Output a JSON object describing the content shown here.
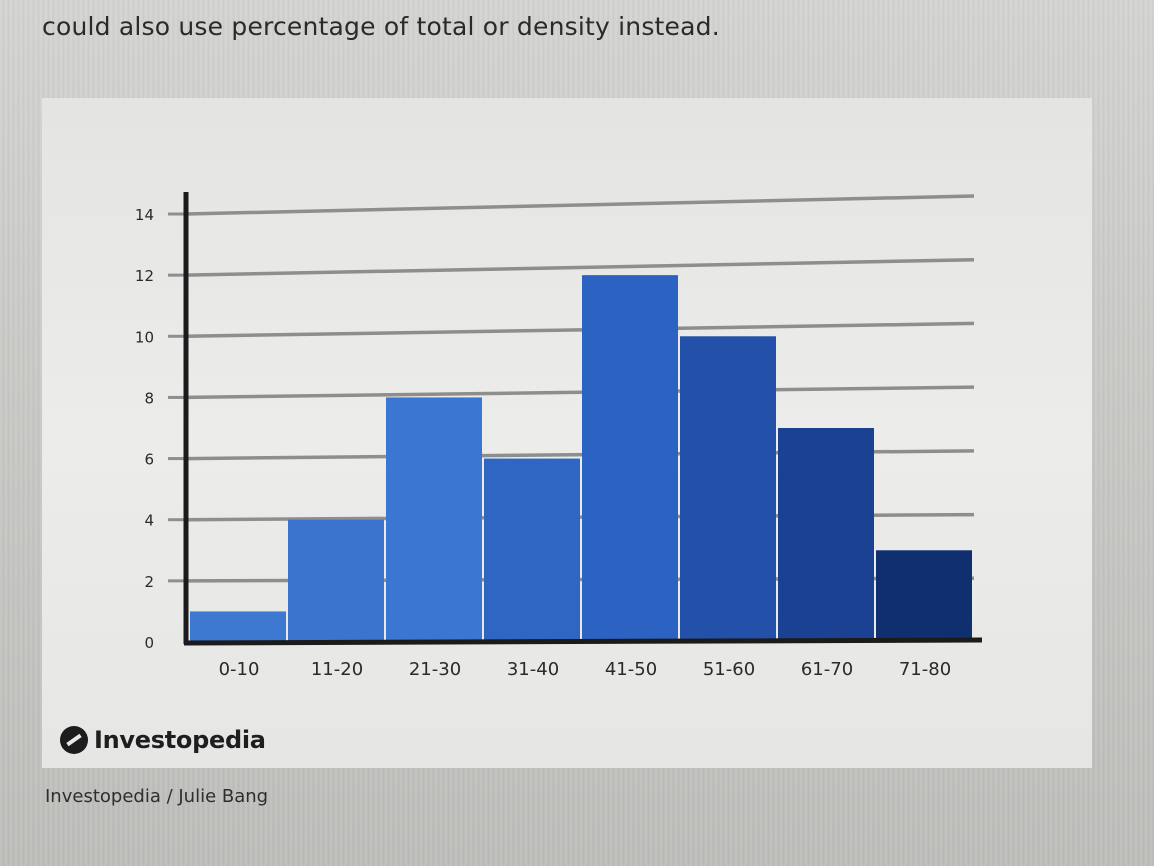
{
  "intro_text": "could also use percentage of total or density instead.",
  "brand": {
    "name": "Investopedia",
    "icon": "investopedia-logo-icon"
  },
  "credit": "Investopedia / Julie Bang",
  "colors": {
    "bars": [
      "#3d78d1",
      "#3a74ce",
      "#3b76d3",
      "#2f66c4",
      "#2c62c2",
      "#2350a9",
      "#1b4192",
      "#102f6e"
    ],
    "axis": "#1b1b1b",
    "grid": "#8e8e8e"
  },
  "chart_data": {
    "type": "bar",
    "categories": [
      "0-10",
      "11-20",
      "21-30",
      "31-40",
      "41-50",
      "51-60",
      "61-70",
      "71-80"
    ],
    "values": [
      1,
      4,
      8,
      6,
      12,
      10,
      7,
      3
    ],
    "yticks": [
      0,
      2,
      4,
      6,
      8,
      10,
      12,
      14
    ],
    "ylim": [
      0,
      14
    ],
    "grid": true,
    "legend": "none",
    "title": "",
    "xlabel": "",
    "ylabel": ""
  }
}
